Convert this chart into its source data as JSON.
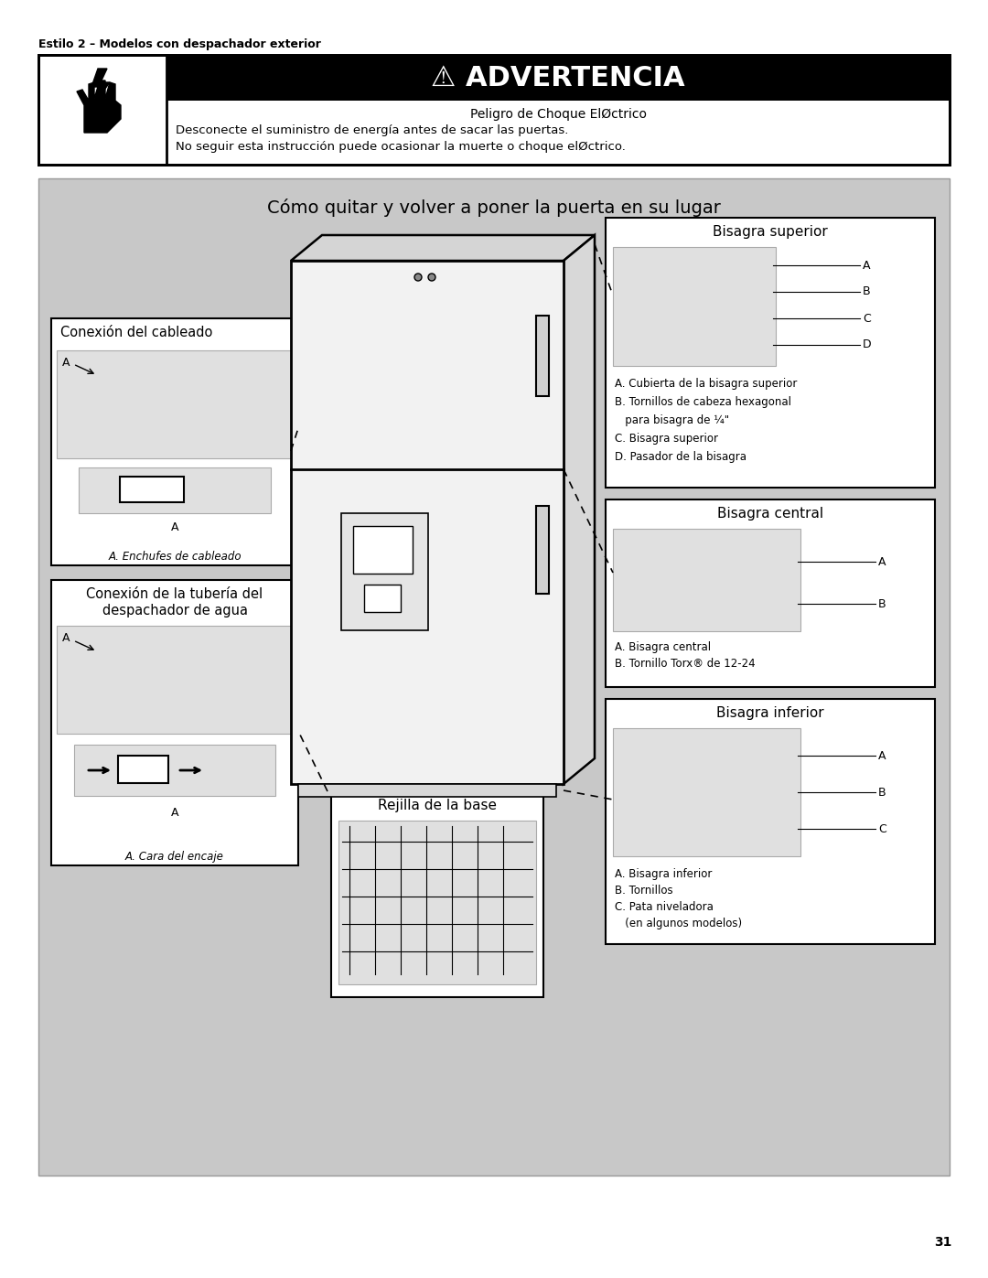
{
  "page_number": "31",
  "bg_color": "#ffffff",
  "header_text": "Estilo 2 – Modelos con despachador exterior",
  "warning_text": "⚠ ADVERTENCIA",
  "warning_subtitle": "Peligro de Choque ElØctrico",
  "warning_line1": "Desconecte el suministro de energía antes de sacar las puertas.",
  "warning_line2": "No seguir esta instrucción puede ocasionar la muerte o choque elØctrico.",
  "main_title": "Cómo quitar y volver a poner la puerta en su lugar",
  "gray_bg": "#c8c8c8",
  "box1_title": "Conexión del cableado",
  "box1_caption": "A. Enchufes de cableado",
  "box2_title_line1": "Conexión de la tubería del",
  "box2_title_line2": "despachador de agua",
  "box2_caption": "A. Cara del encaje",
  "box3_title": "Rejilla de la base",
  "bisagra_sup_title": "Bisagra superior",
  "bisagra_sup_lines": [
    "A. Cubierta de la bisagra superior",
    "B. Tornillos de cabeza hexagonal",
    "   para bisagra de ¼\"",
    "C. Bisagra superior",
    "D. Pasador de la bisagra"
  ],
  "bisagra_cen_title": "Bisagra central",
  "bisagra_cen_lines": [
    "A. Bisagra central",
    "B. Tornillo Torx® de 12-24"
  ],
  "bisagra_inf_title": "Bisagra inferior",
  "bisagra_inf_lines": [
    "A. Bisagra inferior",
    "B. Tornillos",
    "C. Pata niveladora",
    "   (en algunos modelos)"
  ]
}
